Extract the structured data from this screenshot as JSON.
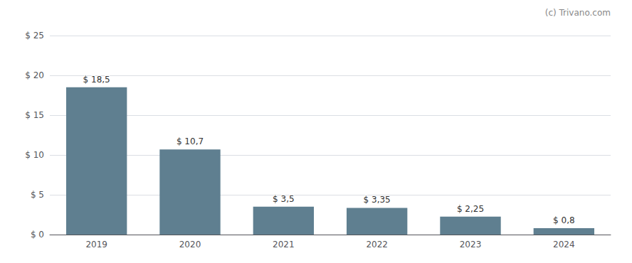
{
  "chart_data": {
    "type": "bar",
    "annotation": "(c) Trivano.com",
    "categories": [
      "2019",
      "2020",
      "2021",
      "2022",
      "2023",
      "2024"
    ],
    "values": [
      18.5,
      10.7,
      3.5,
      3.35,
      2.25,
      0.8
    ],
    "value_labels": [
      "$ 18,5",
      "$ 10,7",
      "$ 3,5",
      "$ 3,35",
      "$ 2,25",
      "$ 0,8"
    ],
    "color": "#5f7f90",
    "ylim": [
      0,
      25
    ],
    "yticks": [
      {
        "value": 0,
        "label": "$ 0"
      },
      {
        "value": 5,
        "label": "$ 5"
      },
      {
        "value": 10,
        "label": "$ 10"
      },
      {
        "value": 15,
        "label": "$ 15"
      },
      {
        "value": 20,
        "label": "$ 20"
      },
      {
        "value": 25,
        "label": "$ 25"
      }
    ],
    "grid": true,
    "data_labels": true
  }
}
